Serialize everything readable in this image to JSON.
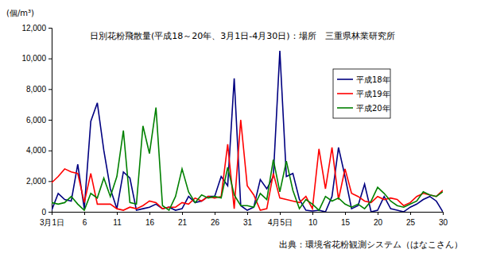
{
  "chart_data": {
    "type": "line",
    "title": "日別花粉飛散量(平成18～20年、3月1日-4月30日)：場所　三重県林業研究所",
    "y_label": "(個/m³)",
    "source": "出典：環境省花粉観測システム（はなこさん）",
    "categories": [
      "3月1日",
      null,
      null,
      null,
      null,
      "6",
      null,
      null,
      null,
      null,
      "11",
      null,
      null,
      null,
      null,
      "16",
      null,
      null,
      null,
      null,
      "21",
      null,
      null,
      null,
      null,
      "26",
      null,
      null,
      null,
      null,
      "31",
      null,
      null,
      null,
      null,
      "4月5日",
      null,
      null,
      null,
      null,
      "10",
      null,
      null,
      null,
      null,
      "15",
      null,
      null,
      null,
      null,
      "20",
      null,
      null,
      null,
      null,
      "25",
      null,
      null,
      null,
      null,
      "30"
    ],
    "series": [
      {
        "name": "平成18年",
        "color": "#000080",
        "values": [
          100,
          1200,
          800,
          700,
          3100,
          200,
          5900,
          7100,
          4000,
          1500,
          200,
          2600,
          2200,
          100,
          200,
          300,
          500,
          200,
          300,
          100,
          200,
          1000,
          600,
          700,
          1000,
          1000,
          2300,
          1700,
          8700,
          400,
          100,
          300,
          2100,
          1500,
          2300,
          10500,
          2300,
          2500,
          800,
          100,
          50,
          100,
          0,
          1000,
          4200,
          2300,
          200,
          400,
          1800,
          0,
          100,
          1000,
          200,
          100,
          0,
          300,
          500,
          800,
          1000,
          700,
          0
        ]
      },
      {
        "name": "平成19年",
        "color": "#ff0000",
        "values": [
          1900,
          2300,
          2800,
          2600,
          2500,
          600,
          2500,
          500,
          500,
          500,
          200,
          100,
          300,
          200,
          400,
          700,
          600,
          200,
          300,
          300,
          600,
          500,
          900,
          700,
          1000,
          900,
          1000,
          4400,
          200,
          6000,
          1700,
          1100,
          100,
          200,
          2500,
          900,
          800,
          700,
          600,
          1000,
          200,
          4100,
          1500,
          4200,
          800,
          2800,
          1200,
          1000,
          700,
          600,
          1000,
          800,
          900,
          800,
          400,
          600,
          1000,
          1200,
          1100,
          1000,
          1400
        ]
      },
      {
        "name": "平成20年",
        "color": "#008000",
        "values": [
          600,
          500,
          600,
          1000,
          500,
          100,
          1200,
          900,
          2200,
          1000,
          2300,
          5300,
          600,
          500,
          5600,
          3800,
          6800,
          400,
          100,
          1000,
          2800,
          1300,
          600,
          1100,
          900,
          1000,
          900,
          2900,
          1100,
          400,
          400,
          300,
          1200,
          800,
          3400,
          1300,
          3300,
          1400,
          200,
          800,
          500,
          100,
          1000,
          700,
          900,
          500,
          300,
          500,
          200,
          700,
          1600,
          1200,
          700,
          400,
          300,
          500,
          700,
          1300,
          1100,
          1000,
          1300
        ]
      }
    ],
    "ylim": [
      0,
      12000
    ],
    "yticks": [
      0,
      {
        "value": 2000,
        "label": "2,000"
      },
      {
        "value": 4000,
        "label": "4,000"
      },
      {
        "value": 6000,
        "label": "6,000"
      },
      {
        "value": 8000,
        "label": "8,000"
      },
      {
        "value": 10000,
        "label": "10,000"
      },
      {
        "value": 12000,
        "label": "12,000"
      }
    ],
    "grid": false,
    "legend": "upper right"
  }
}
